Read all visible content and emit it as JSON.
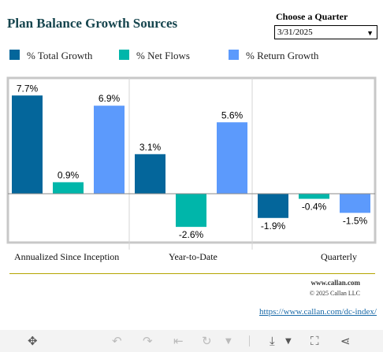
{
  "title": "Plan Balance Growth Sources",
  "quarter": {
    "label": "Choose a Quarter",
    "selected": "3/31/2025"
  },
  "legend": [
    {
      "label": "% Total Growth",
      "color": "#04669b"
    },
    {
      "label": "% Net Flows",
      "color": "#00b6aa"
    },
    {
      "label": "% Return Growth",
      "color": "#5c9afc"
    }
  ],
  "chart_data": {
    "type": "bar",
    "categories": [
      "Annualized Since Inception",
      "Year-to-Date",
      "Quarterly"
    ],
    "series": [
      {
        "name": "% Total Growth",
        "color": "#04669b",
        "values": [
          7.7,
          3.1,
          -1.9
        ],
        "labels": [
          "7.7%",
          "3.1%",
          "-1.9%"
        ]
      },
      {
        "name": "% Net Flows",
        "color": "#00b6aa",
        "values": [
          0.9,
          -2.6,
          -0.4
        ],
        "labels": [
          "0.9%",
          "-2.6%",
          "-0.4%"
        ]
      },
      {
        "name": "% Return Growth",
        "color": "#5c9afc",
        "values": [
          6.9,
          5.6,
          -1.5
        ],
        "labels": [
          "6.9%",
          "5.6%",
          "-1.5%"
        ]
      }
    ],
    "ylim": [
      -3.8,
      8.6
    ],
    "grid": false,
    "legend_position": "top-left"
  },
  "footer": {
    "site": "www.callan.com",
    "copyright": "© 2025 Callan LLC",
    "link": "https://www.callan.com/dc-index/"
  },
  "toolbar": {
    "icons": [
      "move-icon",
      "undo-icon",
      "redo-icon",
      "revert-icon",
      "refresh-icon",
      "dropdown-caret-icon",
      "download-icon",
      "fullscreen-icon",
      "share-icon"
    ]
  }
}
